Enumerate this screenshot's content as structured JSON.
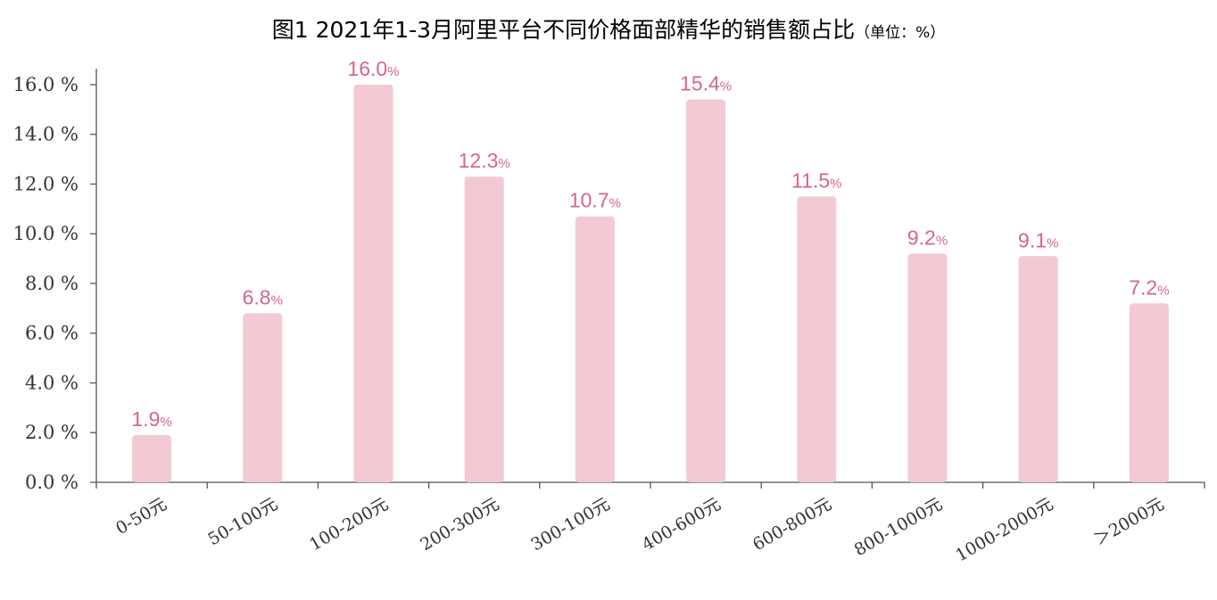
{
  "chart_data": {
    "type": "bar",
    "title": "图1 2021年1-3月阿里平台不同价格面部精华的销售额占比",
    "unit_note": "（单位：%）",
    "categories": [
      "0-50元",
      "50-100元",
      "100-200元",
      "200-300元",
      "300-100元",
      "400-600元",
      "600-800元",
      "800-1000元",
      "1000-2000元",
      "＞2000元"
    ],
    "values": [
      1.9,
      6.8,
      16.0,
      12.3,
      10.7,
      15.4,
      11.5,
      9.2,
      9.1,
      7.2
    ],
    "value_labels": [
      "1.9",
      "6.8",
      "16.0",
      "12.3",
      "10.7",
      "15.4",
      "11.5",
      "9.2",
      "9.1",
      "7.2"
    ],
    "value_suffix": "%",
    "yticks": [
      "0.0 %",
      "2.0 %",
      "4.0 %",
      "6.0 %",
      "8.0 %",
      "10.0 %",
      "12.0 %",
      "14.0 %",
      "16.0 %"
    ],
    "ytick_values": [
      0,
      2,
      4,
      6,
      8,
      10,
      12,
      14,
      16
    ],
    "ylim": [
      0,
      16.5
    ],
    "xlabel": "",
    "ylabel": "",
    "grid": false,
    "legend": "none",
    "colors": {
      "bar": "#f3c9d4",
      "data_label": "#d6668a",
      "axis": "#555555",
      "text": "#333333"
    }
  }
}
